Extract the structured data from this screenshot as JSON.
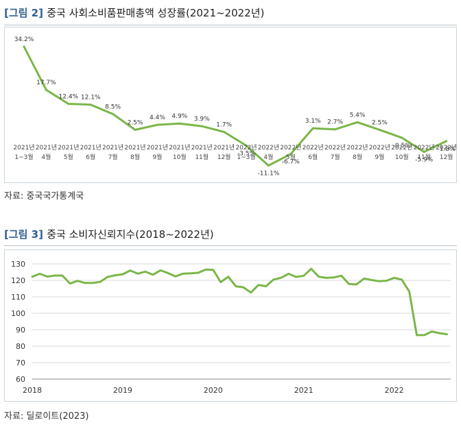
{
  "figure1": {
    "title_prefix": "[그림 2]",
    "title_rest": "중국 사회소비품판매총액 성장률(2021~2022년)",
    "source": "자료: 중국국가통계국",
    "color": "#7ab648",
    "chart_data": {
      "type": "line",
      "title": "중국 사회소비품판매총액 성장률(2021~2022년)",
      "categories": [
        [
          "2021년",
          "1~3월"
        ],
        [
          "2021년",
          "4월"
        ],
        [
          "2021년",
          "5월"
        ],
        [
          "2021년",
          "6월"
        ],
        [
          "2021년",
          "7월"
        ],
        [
          "2021년",
          "8월"
        ],
        [
          "2021년",
          "9월"
        ],
        [
          "2021년",
          "10월"
        ],
        [
          "2021년",
          "11월"
        ],
        [
          "2021년",
          "12월"
        ],
        [
          "2022년",
          "1~3월"
        ],
        [
          "2022년",
          "4월"
        ],
        [
          "2022년",
          "5월"
        ],
        [
          "2022년",
          "6월"
        ],
        [
          "2022년",
          "7월"
        ],
        [
          "2022년",
          "8월"
        ],
        [
          "2022년",
          "9월"
        ],
        [
          "2022년",
          "10월"
        ],
        [
          "2022년",
          "11월"
        ],
        [
          "2022년",
          "12월"
        ]
      ],
      "values": [
        34.2,
        17.7,
        12.4,
        12.1,
        8.5,
        2.5,
        4.4,
        4.9,
        3.9,
        1.7,
        -3.5,
        -11.1,
        -6.7,
        3.1,
        2.7,
        5.4,
        2.5,
        -0.5,
        -5.9,
        -1.8
      ],
      "labels": [
        "34.2%",
        "17.7%",
        "12.4%",
        "12.1%",
        "8.5%",
        "2.5%",
        "4.4%",
        "4.9%",
        "3.9%",
        "1.7%",
        "-3.5%",
        "-11.1%",
        "-6.7%",
        "3.1%",
        "2.7%",
        "5.4%",
        "2.5%",
        "-0.5%",
        "-5.9%",
        "-1.8%"
      ],
      "unit": "%",
      "grid": false,
      "legend": "none"
    }
  },
  "figure2": {
    "title_prefix": "[그림 3]",
    "title_rest": "중국 소비자신뢰지수(2018~2022년)",
    "source": "자료: 딜로이트(2023)",
    "color": "#7ab648",
    "chart_data": {
      "type": "line",
      "title": "중국 소비자신뢰지수(2018~2022년)",
      "ylim": [
        60,
        130
      ],
      "yticks": [
        60,
        70,
        80,
        90,
        100,
        110,
        120,
        130
      ],
      "xlim": [
        2018.0,
        2022.625
      ],
      "xticks": [
        "2018",
        "2019",
        "2020",
        "2021",
        "2022"
      ],
      "grid": true,
      "legend": "none",
      "x": [
        2018.0,
        2018.083,
        2018.167,
        2018.25,
        2018.333,
        2018.417,
        2018.5,
        2018.583,
        2018.667,
        2018.75,
        2018.833,
        2018.917,
        2019.0,
        2019.083,
        2019.167,
        2019.25,
        2019.333,
        2019.417,
        2019.5,
        2019.583,
        2019.667,
        2019.75,
        2019.833,
        2019.917,
        2020.0,
        2020.083,
        2020.167,
        2020.25,
        2020.333,
        2020.417,
        2020.5,
        2020.583,
        2020.667,
        2020.75,
        2020.833,
        2020.917,
        2021.0,
        2021.083,
        2021.167,
        2021.25,
        2021.333,
        2021.417,
        2021.5,
        2021.583,
        2021.667,
        2021.75,
        2021.833,
        2021.917,
        2022.0,
        2022.083,
        2022.167,
        2022.25,
        2022.333,
        2022.417,
        2022.5,
        2022.583
      ],
      "values": [
        122.2,
        124.0,
        122.3,
        122.9,
        122.9,
        118.1,
        119.7,
        118.4,
        118.4,
        119.1,
        122.1,
        123.1,
        123.7,
        126.0,
        124.1,
        125.3,
        123.4,
        126.1,
        124.4,
        122.4,
        124.1,
        124.3,
        124.6,
        126.6,
        126.4,
        118.9,
        122.2,
        116.4,
        115.8,
        112.6,
        117.2,
        116.4,
        120.5,
        121.6,
        124.0,
        122.1,
        122.8,
        127.0,
        122.2,
        121.5,
        121.8,
        122.8,
        117.8,
        117.5,
        121.1,
        120.2,
        119.5,
        119.8,
        121.5,
        120.5,
        113.2,
        86.7,
        86.7,
        88.9,
        87.9,
        87.2
      ]
    }
  }
}
